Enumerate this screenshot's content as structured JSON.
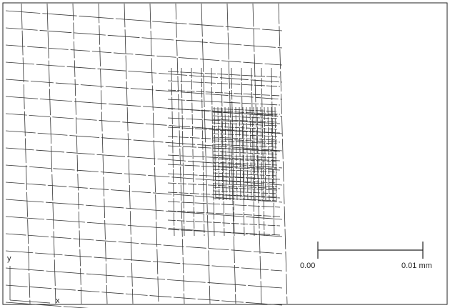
{
  "axes": {
    "y": "y",
    "x": "x"
  },
  "scale_bar": {
    "start_label": "0.00",
    "end_label": "0.01 mm"
  }
}
